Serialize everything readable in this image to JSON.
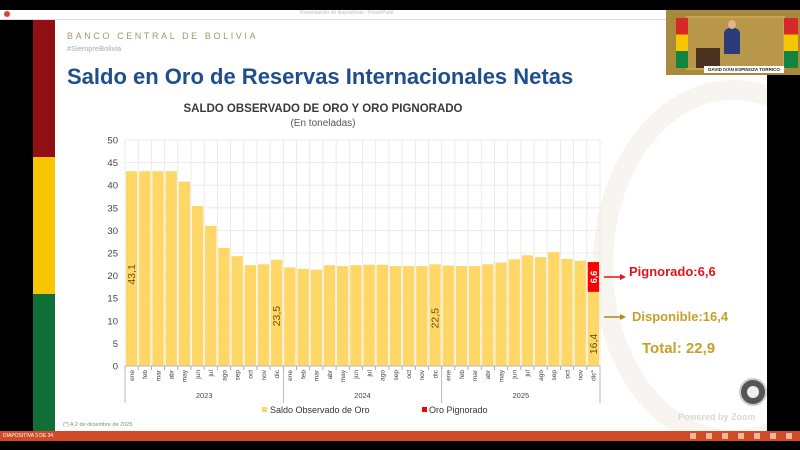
{
  "browser": {
    "tab_text": "Presentación de diapositivas - PowerPoint"
  },
  "slide": {
    "org": "BANCO CENTRAL DE BOLIVIA",
    "hashtag": "#SiemprеBolivia",
    "title": "Saldo en Oro de Reservas Internacionales Netas",
    "footnote": "(*) A 2 de diciembre de 2025",
    "annotations": {
      "pignorado": "Pignorado:6,6",
      "disponible": "Disponible:16,4",
      "total": "Total: 22,9"
    },
    "powered": "Powered by Zoom"
  },
  "video": {
    "caption": "DAVID IVÁN ESPINOZA TORRICO"
  },
  "status": {
    "slide_counter": "DIAPOSITIVA 3 DE 34"
  },
  "colors": {
    "bar": "#ffd766",
    "pignorado": "#ff0000",
    "title": "#1f4e8f",
    "grid": "#e6e6e6"
  },
  "chart_data": {
    "type": "bar",
    "stacked": true,
    "title": "SALDO OBSERVADO DE ORO Y ORO PIGNORADO",
    "subtitle": "(En toneladas)",
    "xlabel": "",
    "ylabel": "",
    "ylim": [
      0,
      50
    ],
    "yticks": [
      0,
      5,
      10,
      15,
      20,
      25,
      30,
      35,
      40,
      45,
      50
    ],
    "grid": true,
    "legend_position": "bottom",
    "categories": [
      "ene",
      "feb",
      "mar",
      "abr",
      "may",
      "jun",
      "jul",
      "ago",
      "sep",
      "oct",
      "nov",
      "dic",
      "ene",
      "feb",
      "mar",
      "abr",
      "may",
      "jun",
      "jul",
      "ago",
      "sep",
      "oct",
      "nov",
      "dic",
      "ene",
      "feb",
      "mar",
      "abr",
      "may",
      "jun",
      "jul",
      "ago",
      "sep",
      "oct",
      "nov",
      "dic*"
    ],
    "year_groups": [
      {
        "label": "2023",
        "count": 12
      },
      {
        "label": "2024",
        "count": 12
      },
      {
        "label": "2025",
        "count": 12
      }
    ],
    "series": [
      {
        "name": "Saldo Observado de Oro",
        "values": [
          43.1,
          43.1,
          43.1,
          43.1,
          40.8,
          35.4,
          31.0,
          26.1,
          24.3,
          22.3,
          22.5,
          23.5,
          21.8,
          21.5,
          21.3,
          22.3,
          22.1,
          22.3,
          22.4,
          22.4,
          22.1,
          22.1,
          22.1,
          22.5,
          22.2,
          22.1,
          22.1,
          22.5,
          22.9,
          23.6,
          24.5,
          24.1,
          25.2,
          23.7,
          23.3,
          16.4
        ]
      },
      {
        "name": "Oro Pignorado",
        "values": [
          0,
          0,
          0,
          0,
          0,
          0,
          0,
          0,
          0,
          0,
          0,
          0,
          0,
          0,
          0,
          0,
          0,
          0,
          0,
          0,
          0,
          0,
          0,
          0,
          0,
          0,
          0,
          0,
          0,
          0,
          0,
          0,
          0,
          0,
          0,
          6.6
        ]
      }
    ],
    "data_labels": [
      {
        "index": 0,
        "series": 0,
        "text": "43,1"
      },
      {
        "index": 11,
        "series": 0,
        "text": "23,5"
      },
      {
        "index": 23,
        "series": 0,
        "text": "22,5"
      },
      {
        "index": 35,
        "series": 0,
        "text": "16,4"
      },
      {
        "index": 35,
        "series": 1,
        "text": "6,6"
      }
    ]
  }
}
